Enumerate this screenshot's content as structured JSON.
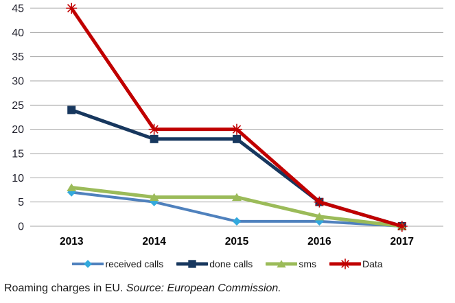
{
  "chart_data": {
    "type": "line",
    "title": "",
    "categories": [
      "2013",
      "2014",
      "2015",
      "2016",
      "2017"
    ],
    "series": [
      {
        "name": "received calls",
        "values": [
          7,
          5,
          1,
          1,
          0
        ],
        "color": "#4f81bd",
        "marker": "diamond",
        "marker_color": "#33a9dd",
        "line_width": 4
      },
      {
        "name": "done calls",
        "values": [
          24,
          18,
          18,
          5,
          0
        ],
        "color": "#17375e",
        "marker": "square",
        "marker_color": "#17375e",
        "line_width": 5
      },
      {
        "name": "sms",
        "values": [
          8,
          6,
          6,
          2,
          0
        ],
        "color": "#9bbb59",
        "marker": "triangle",
        "marker_color": "#9bbb59",
        "line_width": 5
      },
      {
        "name": "Data",
        "values": [
          45,
          20,
          20,
          5,
          0
        ],
        "color": "#c00000",
        "marker": "asterisk",
        "marker_color": "#c00000",
        "line_width": 5
      }
    ],
    "ylim": [
      0,
      45
    ],
    "yticks": [
      "0",
      "5",
      "10",
      "15",
      "20",
      "25",
      "30",
      "35",
      "40",
      "45"
    ],
    "grid": true,
    "gridline_color": "#a6a6a6",
    "ytick_label_color": "#1f1f2b",
    "xtick_label_color": "#000000",
    "legend_position": "bottom",
    "xlabel": "",
    "ylabel": ""
  },
  "caption": {
    "normal": "Roaming charges in EU. ",
    "italic": "Source: European Commission."
  },
  "page": {
    "background": "#ffffff"
  }
}
